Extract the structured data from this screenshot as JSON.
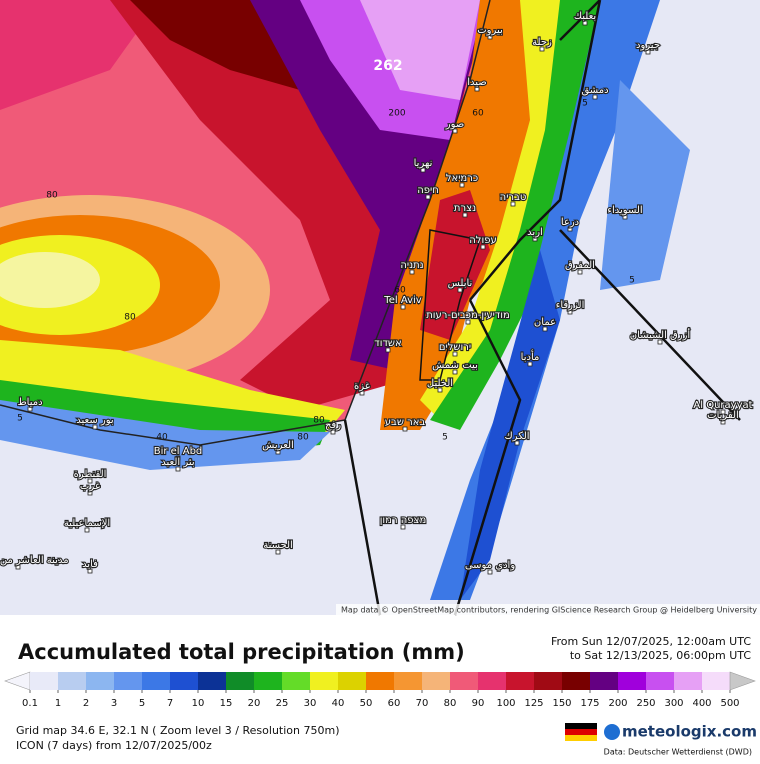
{
  "title": "Accumulated total precipitation (mm)",
  "period": {
    "from": "From Sun 12/07/2025, 12:00am UTC",
    "to": "to Sat 12/13/2025, 06:00pm UTC"
  },
  "legend": {
    "ticks": [
      0.1,
      1,
      2,
      3,
      5,
      7,
      10,
      15,
      20,
      25,
      30,
      40,
      50,
      60,
      70,
      80,
      90,
      100,
      125,
      150,
      175,
      200,
      250,
      300,
      400,
      500
    ],
    "colors": [
      "#e8eaf8",
      "#b8cdf0",
      "#8cb6f0",
      "#6496ee",
      "#3c78e6",
      "#1e50d2",
      "#0c3296",
      "#108c28",
      "#1eb41e",
      "#64dc28",
      "#f0f020",
      "#dcd200",
      "#f07800",
      "#f59632",
      "#f5b478",
      "#f05a78",
      "#e6326e",
      "#c8142d",
      "#a00a14",
      "#780000",
      "#640082",
      "#a000dc",
      "#c850f0",
      "#e6a0f5",
      "#f5dcfa"
    ]
  },
  "info": {
    "grid": "Grid map 34.6 E, 32.1 N ( Zoom level 3 / Resolution 750m)",
    "model": "ICON (7 days) from 12/07/2025/00z"
  },
  "brand": "meteologix.com",
  "source": "Data: Deutscher Wetterdienst (DWD)",
  "map": {
    "attribution": "Map data © OpenStreetMap contributors, rendering GIScience Research Group @ Heidelberg University",
    "places": [
      "بيروت",
      "زحلة",
      "بعلبك",
      "جيرود",
      "صيدا",
      "دمشق",
      "صور",
      "نهريا",
      "חיפה",
      "כרמיאל",
      "נצרת",
      "טבריה",
      "עפולה",
      "درعا",
      "السويداء",
      "اربد",
      "المفرق",
      "נתניה",
      "نابلس",
      "الزرقاء",
      "Tel Aviv",
      "מודיעין-מכבים-רעות",
      "عمان",
      "أزرق الشيشان",
      "אשדוד",
      "ירושלים",
      "بيت شمش",
      "مأدبا",
      "غزة",
      "الخليل",
      "Al Qurayyat",
      "القريات",
      "دمياط",
      "بور سعيد",
      "באר שבע",
      "الكرك",
      "العريش",
      "رفح",
      "Bir el Abd",
      "بئر العبد",
      "القنطرة",
      "غرب",
      "الإسماعيلية",
      "מצפה רמון",
      "الحسنة",
      "فايد",
      "وادي موسى",
      "مدينة العاشر من رمضان"
    ],
    "contours": [
      "262",
      "200",
      "80",
      "60",
      "80",
      "60",
      "40",
      "80",
      "5",
      "5",
      "5",
      "5",
      "80"
    ]
  }
}
